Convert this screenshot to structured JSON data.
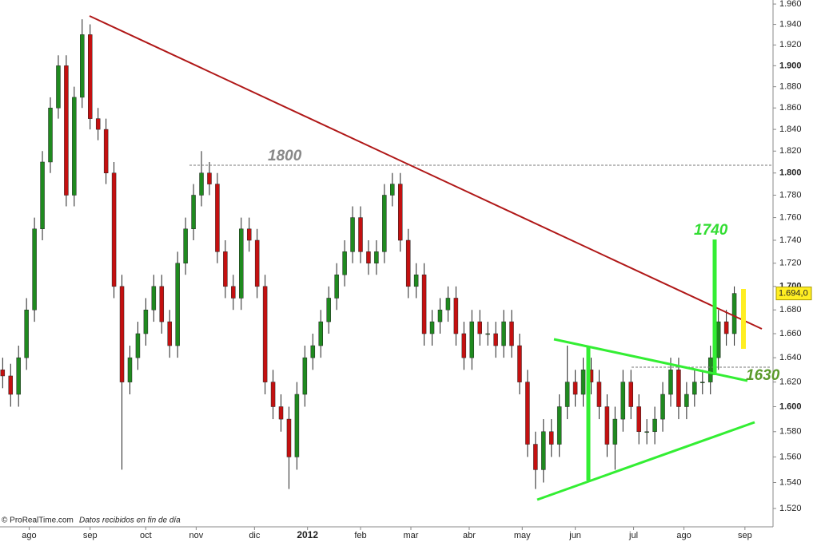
{
  "chart_data": {
    "type": "candlestick",
    "x": [
      0,
      3,
      6,
      9,
      12,
      15,
      18,
      21,
      24,
      27,
      30,
      33,
      36,
      39,
      42,
      45,
      48,
      51,
      54,
      57,
      60,
      63,
      66,
      69,
      72,
      75,
      78,
      81,
      84,
      87,
      90,
      93,
      96,
      99,
      102,
      105,
      108,
      111,
      114,
      117,
      120,
      123,
      126,
      129,
      132,
      135,
      138,
      141,
      144,
      147,
      150,
      153,
      156,
      159,
      162,
      165,
      168,
      171,
      174,
      177,
      180,
      183,
      186,
      189,
      192,
      195,
      198,
      201,
      204,
      207,
      210,
      213,
      216,
      219,
      222,
      225,
      228,
      231,
      234,
      237,
      240,
      243,
      246,
      249,
      252,
      255,
      258,
      261,
      264,
      267,
      270,
      273,
      276
    ],
    "open": [
      1.63,
      1.625,
      1.61,
      1.64,
      1.68,
      1.75,
      1.81,
      1.86,
      1.9,
      1.78,
      1.87,
      1.93,
      1.85,
      1.84,
      1.8,
      1.7,
      1.62,
      1.64,
      1.66,
      1.68,
      1.7,
      1.67,
      1.65,
      1.72,
      1.75,
      1.78,
      1.8,
      1.79,
      1.73,
      1.7,
      1.69,
      1.75,
      1.74,
      1.7,
      1.62,
      1.6,
      1.59,
      1.56,
      1.61,
      1.64,
      1.65,
      1.67,
      1.69,
      1.71,
      1.73,
      1.76,
      1.73,
      1.72,
      1.73,
      1.78,
      1.79,
      1.74,
      1.7,
      1.71,
      1.66,
      1.67,
      1.68,
      1.69,
      1.66,
      1.64,
      1.67,
      1.66,
      1.66,
      1.65,
      1.67,
      1.65,
      1.62,
      1.57,
      1.55,
      1.58,
      1.57,
      1.6,
      1.62,
      1.61,
      1.63,
      1.62,
      1.6,
      1.57,
      1.59,
      1.62,
      1.6,
      1.58,
      1.58,
      1.59,
      1.61,
      1.63,
      1.6,
      1.61,
      1.62,
      1.62,
      1.64,
      1.67,
      1.66
    ],
    "high": [
      1.64,
      1.635,
      1.65,
      1.69,
      1.76,
      1.82,
      1.87,
      1.91,
      1.91,
      1.88,
      1.945,
      1.94,
      1.86,
      1.85,
      1.81,
      1.71,
      1.65,
      1.67,
      1.69,
      1.71,
      1.71,
      1.68,
      1.73,
      1.76,
      1.79,
      1.82,
      1.81,
      1.8,
      1.74,
      1.71,
      1.76,
      1.76,
      1.75,
      1.71,
      1.63,
      1.61,
      1.6,
      1.62,
      1.65,
      1.66,
      1.68,
      1.7,
      1.72,
      1.74,
      1.77,
      1.77,
      1.74,
      1.74,
      1.79,
      1.8,
      1.8,
      1.75,
      1.72,
      1.72,
      1.68,
      1.69,
      1.7,
      1.7,
      1.67,
      1.68,
      1.68,
      1.67,
      1.67,
      1.68,
      1.68,
      1.66,
      1.63,
      1.58,
      1.59,
      1.59,
      1.61,
      1.65,
      1.63,
      1.64,
      1.64,
      1.63,
      1.61,
      1.6,
      1.63,
      1.63,
      1.61,
      1.59,
      1.6,
      1.62,
      1.64,
      1.64,
      1.62,
      1.63,
      1.63,
      1.65,
      1.68,
      1.68,
      1.7
    ],
    "low": [
      1.615,
      1.6,
      1.6,
      1.63,
      1.67,
      1.74,
      1.8,
      1.85,
      1.77,
      1.77,
      1.86,
      1.84,
      1.83,
      1.79,
      1.69,
      1.55,
      1.61,
      1.63,
      1.65,
      1.67,
      1.66,
      1.64,
      1.64,
      1.71,
      1.74,
      1.77,
      1.78,
      1.72,
      1.69,
      1.68,
      1.68,
      1.73,
      1.69,
      1.61,
      1.59,
      1.58,
      1.535,
      1.55,
      1.6,
      1.63,
      1.64,
      1.66,
      1.68,
      1.7,
      1.72,
      1.72,
      1.71,
      1.71,
      1.72,
      1.77,
      1.73,
      1.69,
      1.69,
      1.65,
      1.65,
      1.66,
      1.67,
      1.65,
      1.63,
      1.63,
      1.65,
      1.65,
      1.64,
      1.64,
      1.64,
      1.61,
      1.56,
      1.535,
      1.54,
      1.56,
      1.56,
      1.59,
      1.6,
      1.6,
      1.61,
      1.59,
      1.56,
      1.55,
      1.58,
      1.59,
      1.57,
      1.57,
      1.57,
      1.58,
      1.6,
      1.59,
      1.59,
      1.6,
      1.61,
      1.61,
      1.63,
      1.65,
      1.65
    ],
    "close": [
      1.625,
      1.61,
      1.64,
      1.68,
      1.75,
      1.81,
      1.86,
      1.9,
      1.78,
      1.87,
      1.93,
      1.85,
      1.84,
      1.8,
      1.7,
      1.62,
      1.64,
      1.66,
      1.68,
      1.7,
      1.67,
      1.65,
      1.72,
      1.75,
      1.78,
      1.8,
      1.79,
      1.73,
      1.7,
      1.69,
      1.75,
      1.74,
      1.7,
      1.62,
      1.6,
      1.59,
      1.56,
      1.61,
      1.64,
      1.65,
      1.67,
      1.69,
      1.71,
      1.73,
      1.76,
      1.73,
      1.72,
      1.73,
      1.78,
      1.79,
      1.74,
      1.7,
      1.71,
      1.66,
      1.67,
      1.68,
      1.69,
      1.66,
      1.64,
      1.67,
      1.66,
      1.66,
      1.65,
      1.67,
      1.65,
      1.62,
      1.57,
      1.55,
      1.58,
      1.57,
      1.6,
      1.62,
      1.61,
      1.63,
      1.62,
      1.6,
      1.57,
      1.59,
      1.62,
      1.6,
      1.58,
      1.58,
      1.59,
      1.61,
      1.63,
      1.6,
      1.61,
      1.62,
      1.62,
      1.64,
      1.67,
      1.66,
      1.694
    ],
    "up_color": "#1f8a1f",
    "down_color": "#c41010",
    "wick_color": "#222222",
    "log_scale": true,
    "xlim": [
      -1,
      290
    ],
    "ylim": [
      1.506,
      1.964
    ],
    "xticks": [
      {
        "value": 10,
        "label": "ago"
      },
      {
        "value": 33,
        "label": "sep"
      },
      {
        "value": 54,
        "label": "oct"
      },
      {
        "value": 73,
        "label": "nov"
      },
      {
        "value": 95,
        "label": "dic"
      },
      {
        "value": 115,
        "label": "2012"
      },
      {
        "value": 135,
        "label": "feb"
      },
      {
        "value": 154,
        "label": "mar"
      },
      {
        "value": 176,
        "label": "abr"
      },
      {
        "value": 196,
        "label": "may"
      },
      {
        "value": 216,
        "label": "jun"
      },
      {
        "value": 238,
        "label": "jul"
      },
      {
        "value": 257,
        "label": "ago"
      },
      {
        "value": 280,
        "label": "sep"
      }
    ],
    "yticks": [
      {
        "value": 1.52,
        "label": "1.520"
      },
      {
        "value": 1.54,
        "label": "1.540"
      },
      {
        "value": 1.56,
        "label": "1.560"
      },
      {
        "value": 1.58,
        "label": "1.580"
      },
      {
        "value": 1.6,
        "label": "1.600"
      },
      {
        "value": 1.62,
        "label": "1.620"
      },
      {
        "value": 1.64,
        "label": "1.640"
      },
      {
        "value": 1.66,
        "label": "1.660"
      },
      {
        "value": 1.68,
        "label": "1.680"
      },
      {
        "value": 1.7,
        "label": "1.700"
      },
      {
        "value": 1.72,
        "label": "1.720"
      },
      {
        "value": 1.74,
        "label": "1.740"
      },
      {
        "value": 1.76,
        "label": "1.760"
      },
      {
        "value": 1.78,
        "label": "1.780"
      },
      {
        "value": 1.8,
        "label": "1.800"
      },
      {
        "value": 1.82,
        "label": "1.820"
      },
      {
        "value": 1.84,
        "label": "1.840"
      },
      {
        "value": 1.86,
        "label": "1.860"
      },
      {
        "value": 1.88,
        "label": "1.880"
      },
      {
        "value": 1.9,
        "label": "1.900"
      },
      {
        "value": 1.92,
        "label": "1.920"
      },
      {
        "value": 1.94,
        "label": "1.940"
      },
      {
        "value": 1.96,
        "label": "1.960"
      }
    ],
    "last_price_label": "1.694,0",
    "annotations": [
      "1800",
      "1740",
      "1630"
    ],
    "source": "© ProRealTime.com",
    "note": "Datos recibidos en fin de día"
  }
}
